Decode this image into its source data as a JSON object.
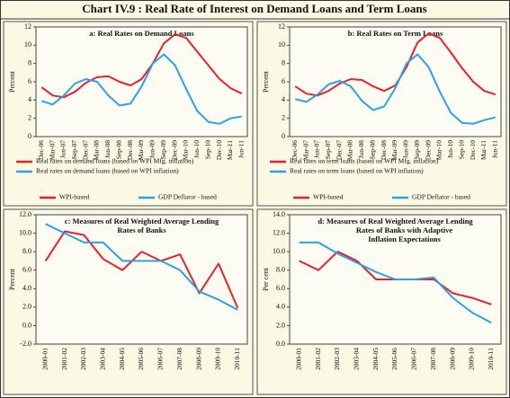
{
  "title": "Chart IV.9 : Real Rate of Interest on Demand Loans and Term Loans",
  "chart_data": [
    {
      "type": "line",
      "title": "a: Real Rates on Demand Loans",
      "ylabel": "Percent",
      "categories": [
        "Dec-06",
        "Mar-07",
        "Jun-07",
        "Sep-07",
        "Dec-07",
        "Mar-08",
        "Jun-08",
        "Sep-08",
        "Dec-08",
        "Mar-09",
        "Jun-09",
        "Sep-09",
        "Dec-09",
        "Mar-10",
        "Jun-10",
        "Sep-10",
        "Dec-10",
        "Mar-11",
        "Jun-11"
      ],
      "ylim": [
        0,
        12
      ],
      "yticks": [
        0,
        2,
        4,
        6,
        8,
        10,
        12
      ],
      "series": [
        {
          "name": "Real rates on demand loans (based on WPI Mfg. inflation)",
          "color": "#e8202a",
          "values": [
            5.4,
            4.5,
            4.3,
            4.9,
            5.9,
            6.5,
            6.6,
            6.0,
            5.6,
            6.3,
            8.0,
            10.2,
            11.2,
            10.8,
            9.3,
            7.8,
            6.3,
            5.3,
            4.7
          ]
        },
        {
          "name": "Real rates on demand loans (based on WPI inflation)",
          "color": "#2aa3e6",
          "values": [
            3.9,
            3.5,
            4.5,
            5.8,
            6.3,
            6.0,
            4.5,
            3.4,
            3.6,
            5.5,
            8.0,
            9.0,
            7.8,
            5.2,
            2.8,
            1.6,
            1.4,
            2.0,
            2.2
          ]
        }
      ]
    },
    {
      "type": "line",
      "title": "b: Real Rates on Term Loans",
      "ylabel": "Percent",
      "categories": [
        "Dec-06",
        "Mar-07",
        "Jun-07",
        "Sep-07",
        "Dec-07",
        "Mar-08",
        "Jun-08",
        "Sep-08",
        "Dec-08",
        "Mar-09",
        "Jun-09",
        "Sep-09",
        "Dec-09",
        "Mar-10",
        "Jun-10",
        "Sep-10",
        "Dec-10",
        "Mar-11",
        "Jun-11"
      ],
      "ylim": [
        0,
        12
      ],
      "yticks": [
        0,
        2,
        4,
        6,
        8,
        10,
        12
      ],
      "series": [
        {
          "name": "Real rates on term loans (based on WPI Mfg. inflation)",
          "color": "#e8202a",
          "values": [
            5.5,
            4.7,
            4.5,
            5.0,
            5.8,
            6.3,
            6.2,
            5.5,
            5.0,
            5.6,
            7.6,
            10.3,
            11.3,
            10.8,
            9.2,
            7.5,
            6.0,
            5.0,
            4.6
          ]
        },
        {
          "name": "Real rates on term loans (based on WPI inflation)",
          "color": "#2aa3e6",
          "values": [
            4.1,
            3.8,
            4.6,
            5.7,
            6.1,
            5.5,
            3.9,
            2.9,
            3.3,
            5.3,
            8.0,
            9.0,
            7.6,
            4.9,
            2.6,
            1.5,
            1.4,
            1.8,
            2.1
          ]
        }
      ]
    },
    {
      "type": "line",
      "title": [
        "c: Measures of Real Weighted Average Lending",
        "Rates of Banks"
      ],
      "ylabel": "Percent",
      "categories": [
        "2000-01",
        "2001-02",
        "2002-03",
        "2003-04",
        "2004-05",
        "2005-06",
        "2006-07",
        "2007-08",
        "2008-09",
        "2009-10",
        "2010-11"
      ],
      "ylim": [
        -2,
        12
      ],
      "yticks": [
        {
          "value": -2,
          "label": "-2.0"
        },
        {
          "value": 0,
          "label": "0.0"
        },
        {
          "value": 2,
          "label": "2.0"
        },
        {
          "value": 4,
          "label": "4.0"
        },
        {
          "value": 6,
          "label": "6.0"
        },
        {
          "value": 8,
          "label": "8.0"
        },
        {
          "value": 10,
          "label": "10.0"
        },
        {
          "value": 12,
          "label": "12.0"
        }
      ],
      "series": [
        {
          "name": "WPI-based",
          "color": "#e8202a",
          "values": [
            7.0,
            10.2,
            9.8,
            7.2,
            6.0,
            8.0,
            7.0,
            7.7,
            3.5,
            6.7,
            1.9
          ]
        },
        {
          "name": "GDP Deflator - based",
          "color": "#2aa3e6",
          "values": [
            11.0,
            10.0,
            9.0,
            9.0,
            7.0,
            7.0,
            7.0,
            6.0,
            3.7,
            2.8,
            1.7
          ]
        }
      ]
    },
    {
      "type": "line",
      "title": [
        "d: Measures of Real Weighted Average Lending",
        "Rates of Banks with Adaptive",
        "Inflation Expectations"
      ],
      "ylabel": "Per cent",
      "categories": [
        "2000-01",
        "2001-02",
        "2002-03",
        "2003-04",
        "2004-05",
        "2005-06",
        "2006-07",
        "2007-08",
        "2008-09",
        "2009-10",
        "2010-11"
      ],
      "ylim": [
        0,
        14
      ],
      "yticks": [
        {
          "value": 0,
          "label": "0.0"
        },
        {
          "value": 2,
          "label": "2.0"
        },
        {
          "value": 4,
          "label": "4.0"
        },
        {
          "value": 6,
          "label": "6.0"
        },
        {
          "value": 8,
          "label": "8.0"
        },
        {
          "value": 10,
          "label": "10.0"
        },
        {
          "value": 12,
          "label": "12.0"
        },
        {
          "value": 14,
          "label": "14.0"
        }
      ],
      "series": [
        {
          "name": "WPI-based",
          "color": "#e8202a",
          "values": [
            9.0,
            8.0,
            10.0,
            9.0,
            7.0,
            7.0,
            7.0,
            7.0,
            5.5,
            5.0,
            4.3
          ]
        },
        {
          "name": "GDP Deflator - based",
          "color": "#2aa3e6",
          "values": [
            11.0,
            11.0,
            9.8,
            8.8,
            7.8,
            7.0,
            7.0,
            7.2,
            5.0,
            3.4,
            2.3
          ]
        }
      ]
    }
  ]
}
